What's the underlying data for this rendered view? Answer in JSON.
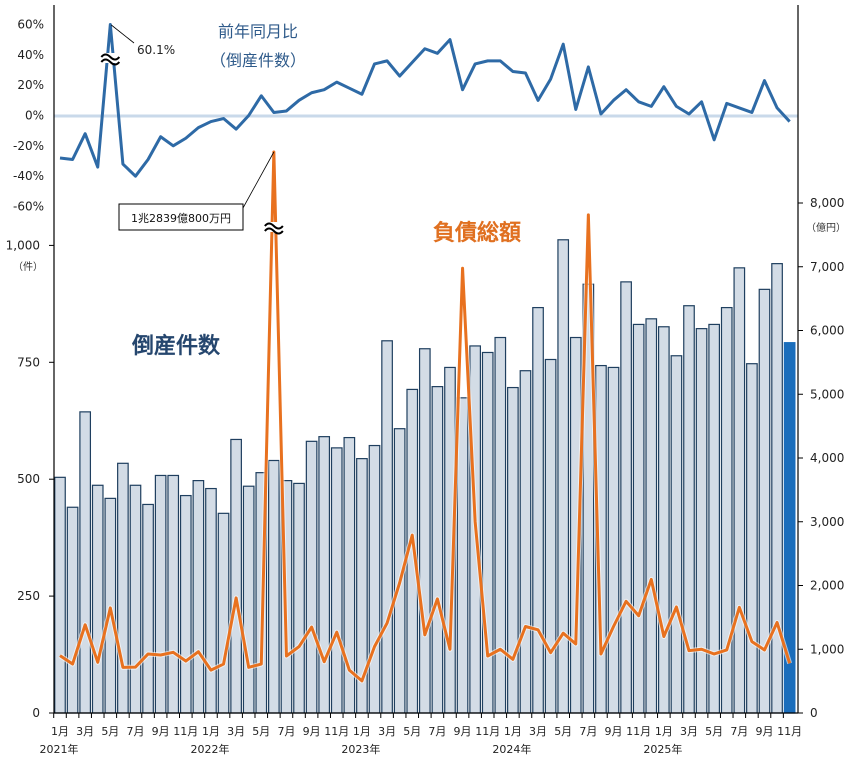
{
  "chart_data": {
    "type": "bar+line",
    "categories": [
      "1月",
      "2月",
      "3月",
      "4月",
      "5月",
      "6月",
      "7月",
      "8月",
      "9月",
      "10月",
      "11月",
      "12月",
      "1月",
      "2月",
      "3月",
      "4月",
      "5月",
      "6月",
      "7月",
      "8月",
      "9月",
      "10月",
      "11月",
      "12月",
      "1月",
      "2月",
      "3月",
      "4月",
      "5月",
      "6月",
      "7月",
      "8月",
      "9月",
      "10月",
      "11月",
      "12月",
      "1月",
      "2月",
      "3月",
      "4月",
      "5月",
      "6月",
      "7月",
      "8月",
      "9月",
      "10月",
      "11月",
      "12月",
      "1月",
      "2月",
      "3月",
      "4月",
      "5月",
      "6月",
      "7月",
      "8月",
      "9月",
      "10月",
      "11月"
    ],
    "year_labels": [
      "2021年",
      "2022年",
      "2023年",
      "2024年",
      "2025年"
    ],
    "bars": {
      "label": "倒産件数",
      "unit": "（件）",
      "values": [
        504,
        440,
        644,
        487,
        459,
        534,
        487,
        446,
        508,
        508,
        465,
        497,
        480,
        427,
        585,
        485,
        514,
        540,
        497,
        491,
        581,
        591,
        567,
        589,
        544,
        572,
        796,
        608,
        692,
        779,
        698,
        739,
        674,
        785,
        771,
        803,
        696,
        732,
        867,
        756,
        1012,
        803,
        917,
        743,
        739,
        922,
        831,
        843,
        826,
        764,
        871,
        822,
        831,
        867,
        952,
        747,
        906,
        961,
        792
      ],
      "color": "#d3dce6",
      "highlight_last_color": "#1a6dbb",
      "ylim": [
        0,
        1000
      ],
      "ticks": [
        "0",
        "250",
        "500",
        "750",
        "1,000"
      ]
    },
    "liabilities": {
      "label": "負債総額",
      "unit": "（億円）",
      "values": [
        900,
        768,
        1384,
        795,
        1648,
        716,
        720,
        926,
        910,
        952,
        815,
        962,
        673,
        768,
        1805,
        716,
        768,
        12839,
        894,
        1041,
        1348,
        804,
        1268,
        673,
        504,
        1041,
        1411,
        2043,
        2790,
        1226,
        1790,
        1000,
        6976,
        3000,
        894,
        1000,
        842,
        1357,
        1305,
        946,
        1252,
        1083,
        7813,
        926,
        1357,
        1752,
        1526,
        2095,
        1200,
        1663,
        978,
        1000,
        926,
        989,
        1657,
        1120,
        989,
        1420,
        779
      ],
      "color": "#e8711f",
      "ylim": [
        0,
        8000
      ],
      "ticks": [
        "0",
        "1,000",
        "2,000",
        "3,000",
        "4,000",
        "5,000",
        "6,000",
        "7,000",
        "8,000"
      ],
      "annotation": "1兆2839億800万円"
    },
    "yoy": {
      "label": "前年同月比",
      "sublabel": "（倒産件数）",
      "values": [
        -28,
        -29,
        -12,
        -34,
        60.1,
        -32,
        -40,
        -29,
        -14,
        -20,
        -15,
        -8,
        -4,
        -2,
        -9,
        0,
        13,
        2,
        3,
        10,
        15,
        17,
        22,
        18,
        14,
        34,
        36,
        26,
        35,
        44,
        41,
        50,
        17,
        34,
        36,
        36,
        29,
        28,
        10,
        24,
        47,
        4,
        32,
        1,
        10,
        17,
        9,
        6,
        19,
        6,
        1,
        9,
        -16,
        8,
        5,
        2,
        23,
        5,
        -4
      ],
      "color": "#2e6aa6",
      "ylim": [
        -60,
        60
      ],
      "ticks": [
        "60%",
        "40%",
        "20%",
        "0%",
        "-20%",
        "-40%",
        "-60%"
      ],
      "annotation": "60.1%"
    }
  }
}
